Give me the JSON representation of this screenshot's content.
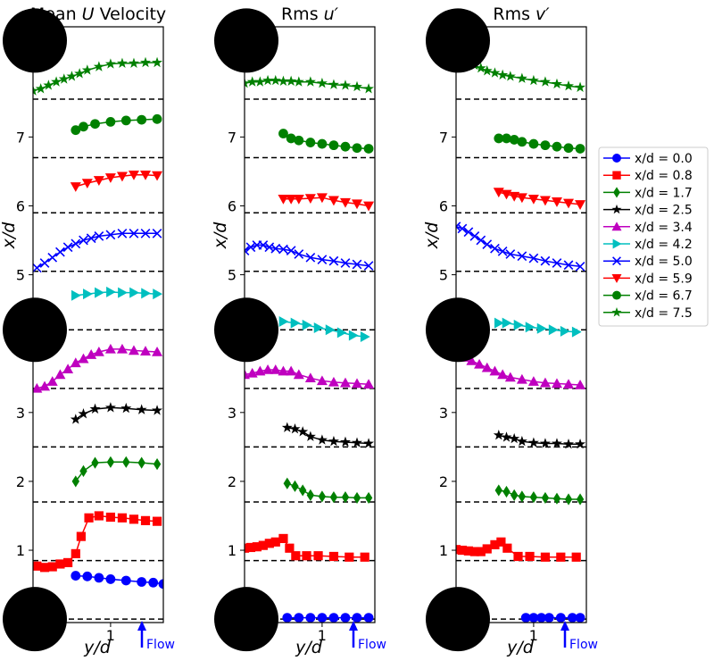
{
  "chart_data": [
    {
      "type": "line",
      "title": "Mean U Velocity",
      "title_parts": [
        "Mean ",
        "U",
        " Velocity"
      ],
      "xlabel": "y/d",
      "ylabel": "x/d",
      "xlim": [
        0.0,
        1.68
      ],
      "ylim": [
        -0.05,
        8.6
      ],
      "yticks": [
        "1",
        "2",
        "3",
        "4",
        "5",
        "6",
        "7"
      ],
      "xticks": [
        "1"
      ],
      "baselines": [
        0.0,
        0.85,
        1.7,
        2.5,
        3.35,
        4.2,
        5.05,
        5.9,
        6.7,
        7.55
      ],
      "series": [
        {
          "name": "x/d = 0.0",
          "y": [
            0.55,
            0.7,
            0.85,
            1.0,
            1.2,
            1.4,
            1.55,
            1.68
          ],
          "v": [
            0.63,
            0.62,
            0.6,
            0.58,
            0.56,
            0.54,
            0.53,
            0.51
          ]
        },
        {
          "name": "x/d = 0.8",
          "y": [
            0.05,
            0.15,
            0.25,
            0.35,
            0.45,
            0.55,
            0.62,
            0.72,
            0.85,
            1.0,
            1.15,
            1.3,
            1.45,
            1.6
          ],
          "v": [
            0.77,
            0.75,
            0.76,
            0.8,
            0.82,
            0.95,
            1.2,
            1.47,
            1.5,
            1.48,
            1.47,
            1.45,
            1.43,
            1.42
          ]
        },
        {
          "name": "x/d = 1.7",
          "y": [
            0.55,
            0.65,
            0.8,
            1.0,
            1.2,
            1.4,
            1.6
          ],
          "v": [
            2.0,
            2.15,
            2.27,
            2.28,
            2.28,
            2.27,
            2.25
          ]
        },
        {
          "name": "x/d = 2.5",
          "y": [
            0.55,
            0.65,
            0.8,
            1.0,
            1.2,
            1.4,
            1.6
          ],
          "v": [
            2.9,
            2.98,
            3.05,
            3.07,
            3.06,
            3.04,
            3.03
          ]
        },
        {
          "name": "x/d = 3.4",
          "y": [
            0.05,
            0.15,
            0.25,
            0.35,
            0.45,
            0.55,
            0.65,
            0.75,
            0.85,
            1.0,
            1.15,
            1.3,
            1.45,
            1.6
          ],
          "v": [
            3.35,
            3.38,
            3.45,
            3.55,
            3.63,
            3.72,
            3.78,
            3.84,
            3.88,
            3.92,
            3.92,
            3.9,
            3.89,
            3.88
          ]
        },
        {
          "name": "x/d = 4.2",
          "y": [
            0.55,
            0.7,
            0.85,
            1.0,
            1.15,
            1.3,
            1.45,
            1.6
          ],
          "v": [
            4.7,
            4.72,
            4.74,
            4.75,
            4.74,
            4.74,
            4.73,
            4.72
          ]
        },
        {
          "name": "x/d = 5.0",
          "y": [
            0.05,
            0.15,
            0.25,
            0.35,
            0.45,
            0.55,
            0.65,
            0.75,
            0.85,
            1.0,
            1.15,
            1.3,
            1.45,
            1.6
          ],
          "v": [
            5.1,
            5.17,
            5.25,
            5.33,
            5.4,
            5.45,
            5.5,
            5.53,
            5.56,
            5.58,
            5.6,
            5.6,
            5.6,
            5.6
          ]
        },
        {
          "name": "x/d = 5.9",
          "y": [
            0.55,
            0.7,
            0.85,
            1.0,
            1.15,
            1.3,
            1.45,
            1.6
          ],
          "v": [
            6.28,
            6.33,
            6.37,
            6.41,
            6.43,
            6.45,
            6.45,
            6.44
          ]
        },
        {
          "name": "x/d = 6.7",
          "y": [
            0.55,
            0.65,
            0.8,
            1.0,
            1.2,
            1.4,
            1.6
          ],
          "v": [
            7.1,
            7.15,
            7.19,
            7.22,
            7.24,
            7.25,
            7.26
          ]
        },
        {
          "name": "x/d = 7.5",
          "y": [
            0.0,
            0.1,
            0.2,
            0.3,
            0.4,
            0.5,
            0.6,
            0.7,
            0.85,
            1.0,
            1.15,
            1.3,
            1.45,
            1.6
          ],
          "v": [
            7.67,
            7.7,
            7.75,
            7.8,
            7.84,
            7.88,
            7.92,
            7.97,
            8.02,
            8.06,
            8.07,
            8.07,
            8.08,
            8.08
          ]
        }
      ],
      "flow_label": "Flow"
    },
    {
      "type": "line",
      "title": "Rms u′",
      "title_parts": [
        "Rms ",
        "u′",
        ""
      ],
      "xlabel": "y/d",
      "ylabel": "x/d",
      "xlim": [
        0.0,
        1.68
      ],
      "ylim": [
        -0.05,
        8.6
      ],
      "yticks": [
        "1",
        "2",
        "3",
        "4",
        "5",
        "6",
        "7"
      ],
      "xticks": [
        "1"
      ],
      "baselines": [
        0.0,
        0.85,
        1.7,
        2.5,
        3.35,
        4.2,
        5.05,
        5.9,
        6.7,
        7.55
      ],
      "series": [
        {
          "name": "x/d = 0.0",
          "y": [
            0.55,
            0.7,
            0.85,
            1.0,
            1.15,
            1.3,
            1.45,
            1.6
          ],
          "v": [
            0.02,
            0.02,
            0.02,
            0.02,
            0.02,
            0.02,
            0.02,
            0.02
          ]
        },
        {
          "name": "x/d = 0.8",
          "y": [
            0.0,
            0.08,
            0.16,
            0.24,
            0.32,
            0.4,
            0.5,
            0.58,
            0.66,
            0.8,
            0.95,
            1.15,
            1.35,
            1.55
          ],
          "v": [
            1.03,
            1.04,
            1.05,
            1.07,
            1.1,
            1.12,
            1.17,
            1.03,
            0.92,
            0.92,
            0.92,
            0.91,
            0.9,
            0.9
          ]
        },
        {
          "name": "x/d = 1.7",
          "y": [
            0.55,
            0.65,
            0.75,
            0.85,
            1.0,
            1.15,
            1.3,
            1.45,
            1.6
          ],
          "v": [
            1.97,
            1.93,
            1.87,
            1.8,
            1.78,
            1.77,
            1.77,
            1.76,
            1.76
          ]
        },
        {
          "name": "x/d = 2.5",
          "y": [
            0.55,
            0.65,
            0.75,
            0.85,
            1.0,
            1.15,
            1.3,
            1.45,
            1.6
          ],
          "v": [
            2.78,
            2.76,
            2.72,
            2.65,
            2.6,
            2.58,
            2.57,
            2.56,
            2.55
          ]
        },
        {
          "name": "x/d = 3.4",
          "y": [
            0.0,
            0.1,
            0.2,
            0.3,
            0.4,
            0.5,
            0.6,
            0.7,
            0.85,
            1.0,
            1.15,
            1.3,
            1.45,
            1.6
          ],
          "v": [
            3.55,
            3.57,
            3.6,
            3.62,
            3.62,
            3.6,
            3.6,
            3.55,
            3.5,
            3.46,
            3.44,
            3.43,
            3.42,
            3.41
          ]
        },
        {
          "name": "x/d = 4.2",
          "y": [
            0.5,
            0.65,
            0.8,
            0.95,
            1.1,
            1.25,
            1.4,
            1.55
          ],
          "v": [
            4.32,
            4.3,
            4.27,
            4.23,
            4.2,
            4.16,
            4.12,
            4.1
          ]
        },
        {
          "name": "x/d = 5.0",
          "y": [
            0.0,
            0.08,
            0.16,
            0.24,
            0.32,
            0.4,
            0.5,
            0.6,
            0.7,
            0.85,
            1.0,
            1.15,
            1.3,
            1.45,
            1.6
          ],
          "v": [
            5.35,
            5.4,
            5.43,
            5.43,
            5.4,
            5.38,
            5.37,
            5.35,
            5.3,
            5.25,
            5.22,
            5.2,
            5.17,
            5.15,
            5.13
          ]
        },
        {
          "name": "x/d = 5.9",
          "y": [
            0.5,
            0.6,
            0.7,
            0.85,
            1.0,
            1.15,
            1.3,
            1.45,
            1.6
          ],
          "v": [
            6.1,
            6.1,
            6.1,
            6.11,
            6.12,
            6.08,
            6.05,
            6.03,
            6.0
          ]
        },
        {
          "name": "x/d = 6.7",
          "y": [
            0.5,
            0.6,
            0.7,
            0.85,
            1.0,
            1.15,
            1.3,
            1.45,
            1.6
          ],
          "v": [
            7.05,
            6.98,
            6.95,
            6.92,
            6.9,
            6.88,
            6.86,
            6.84,
            6.83
          ]
        },
        {
          "name": "x/d = 7.5",
          "y": [
            0.0,
            0.1,
            0.2,
            0.3,
            0.4,
            0.5,
            0.6,
            0.7,
            0.85,
            1.0,
            1.15,
            1.3,
            1.45,
            1.6
          ],
          "v": [
            7.78,
            7.8,
            7.8,
            7.82,
            7.82,
            7.81,
            7.81,
            7.8,
            7.8,
            7.78,
            7.76,
            7.75,
            7.73,
            7.7
          ]
        }
      ],
      "flow_label": "Flow"
    },
    {
      "type": "line",
      "title": "Rms v′",
      "title_parts": [
        "Rms ",
        "v′",
        ""
      ],
      "xlabel": "y/d",
      "ylabel": "x/d",
      "xlim": [
        0.0,
        1.68
      ],
      "ylim": [
        -0.05,
        8.6
      ],
      "yticks": [
        "1",
        "2",
        "3",
        "4",
        "5",
        "6",
        "7"
      ],
      "xticks": [
        "1"
      ],
      "baselines": [
        0.0,
        0.85,
        1.7,
        2.5,
        3.35,
        4.2,
        5.05,
        5.9,
        6.7,
        7.55
      ],
      "series": [
        {
          "name": "x/d = 0.0",
          "y": [
            0.9,
            1.0,
            1.1,
            1.2,
            1.35,
            1.5,
            1.6
          ],
          "v": [
            0.02,
            0.02,
            0.02,
            0.02,
            0.02,
            0.02,
            0.02
          ]
        },
        {
          "name": "x/d = 0.8",
          "y": [
            0.0,
            0.08,
            0.16,
            0.24,
            0.32,
            0.4,
            0.5,
            0.58,
            0.66,
            0.8,
            0.95,
            1.15,
            1.35,
            1.55
          ],
          "v": [
            1.01,
            1.0,
            0.99,
            0.98,
            0.98,
            1.02,
            1.08,
            1.12,
            1.03,
            0.91,
            0.91,
            0.9,
            0.9,
            0.9
          ]
        },
        {
          "name": "x/d = 1.7",
          "y": [
            0.55,
            0.65,
            0.75,
            0.85,
            1.0,
            1.15,
            1.3,
            1.45,
            1.6
          ],
          "v": [
            1.87,
            1.85,
            1.8,
            1.78,
            1.77,
            1.76,
            1.75,
            1.74,
            1.74
          ]
        },
        {
          "name": "x/d = 2.5",
          "y": [
            0.55,
            0.65,
            0.75,
            0.85,
            1.0,
            1.15,
            1.3,
            1.45,
            1.6
          ],
          "v": [
            2.67,
            2.64,
            2.62,
            2.58,
            2.56,
            2.55,
            2.55,
            2.54,
            2.54
          ]
        },
        {
          "name": "x/d = 3.4",
          "y": [
            0.0,
            0.1,
            0.2,
            0.3,
            0.4,
            0.5,
            0.6,
            0.7,
            0.85,
            1.0,
            1.15,
            1.3,
            1.45,
            1.6
          ],
          "v": [
            3.82,
            3.8,
            3.75,
            3.7,
            3.65,
            3.6,
            3.55,
            3.51,
            3.48,
            3.45,
            3.43,
            3.42,
            3.41,
            3.4
          ]
        },
        {
          "name": "x/d = 4.2",
          "y": [
            0.55,
            0.65,
            0.8,
            0.95,
            1.1,
            1.25,
            1.4,
            1.55
          ],
          "v": [
            4.3,
            4.3,
            4.27,
            4.24,
            4.22,
            4.2,
            4.18,
            4.17
          ]
        },
        {
          "name": "x/d = 5.0",
          "y": [
            0.0,
            0.08,
            0.16,
            0.24,
            0.32,
            0.4,
            0.5,
            0.6,
            0.7,
            0.85,
            1.0,
            1.15,
            1.3,
            1.45,
            1.6
          ],
          "v": [
            5.7,
            5.67,
            5.62,
            5.56,
            5.5,
            5.44,
            5.38,
            5.34,
            5.3,
            5.27,
            5.24,
            5.2,
            5.17,
            5.14,
            5.12
          ]
        },
        {
          "name": "x/d = 5.9",
          "y": [
            0.55,
            0.65,
            0.75,
            0.85,
            1.0,
            1.15,
            1.3,
            1.45,
            1.6
          ],
          "v": [
            6.2,
            6.17,
            6.14,
            6.12,
            6.1,
            6.08,
            6.06,
            6.04,
            6.02
          ]
        },
        {
          "name": "x/d = 6.7",
          "y": [
            0.55,
            0.65,
            0.75,
            0.85,
            1.0,
            1.15,
            1.3,
            1.45,
            1.6
          ],
          "v": [
            6.98,
            6.98,
            6.96,
            6.93,
            6.9,
            6.88,
            6.86,
            6.84,
            6.83
          ]
        },
        {
          "name": "x/d = 7.5",
          "y": [
            0.0,
            0.08,
            0.16,
            0.24,
            0.32,
            0.4,
            0.5,
            0.6,
            0.7,
            0.85,
            1.0,
            1.15,
            1.3,
            1.45,
            1.6
          ],
          "v": [
            8.12,
            8.1,
            8.07,
            8.04,
            8.0,
            7.96,
            7.93,
            7.9,
            7.88,
            7.85,
            7.82,
            7.8,
            7.77,
            7.74,
            7.72
          ]
        }
      ],
      "flow_label": "Flow"
    }
  ],
  "legend": {
    "entries": [
      "x/d = 0.0",
      "x/d = 0.8",
      "x/d = 1.7",
      "x/d = 2.5",
      "x/d = 3.4",
      "x/d = 4.2",
      "x/d = 5.0",
      "x/d = 5.9",
      "x/d = 6.7",
      "x/d = 7.5"
    ],
    "colors": [
      "#0000ff",
      "#ff0000",
      "#008000",
      "#000000",
      "#bf00bf",
      "#00bfbf",
      "#0000ff",
      "#ff0000",
      "#008000",
      "#008000"
    ],
    "markers": [
      "circle",
      "square",
      "diamond",
      "star",
      "triangle-up",
      "triangle-right",
      "x",
      "triangle-down",
      "circle",
      "star"
    ],
    "placement": "right"
  },
  "cylinders": [
    0.0,
    4.2,
    8.4
  ]
}
